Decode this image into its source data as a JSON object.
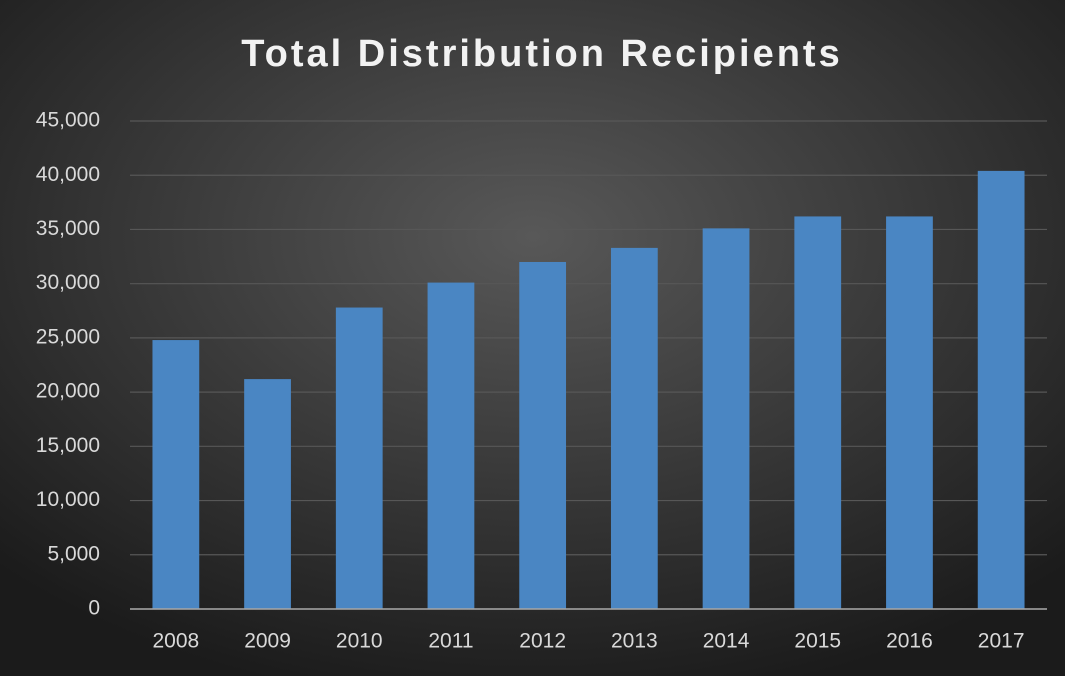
{
  "chart_data": {
    "type": "bar",
    "title": "Total Distribution Recipients",
    "categories": [
      "2008",
      "2009",
      "2010",
      "2011",
      "2012",
      "2013",
      "2014",
      "2015",
      "2016",
      "2017"
    ],
    "values": [
      24800,
      21200,
      27800,
      30100,
      32000,
      33300,
      35100,
      36200,
      36200,
      40400
    ],
    "color": "#4a86c3",
    "ylim": [
      0,
      45000
    ],
    "yticks": [
      0,
      {
        "value": 5000,
        "label": "5,000"
      },
      {
        "value": 10000,
        "label": "10,000"
      },
      {
        "value": 15000,
        "label": "15,000"
      },
      {
        "value": 20000,
        "label": "20,000"
      },
      {
        "value": 25000,
        "label": "25,000"
      },
      {
        "value": 30000,
        "label": "30,000"
      },
      {
        "value": 35000,
        "label": "35,000"
      },
      {
        "value": 40000,
        "label": "40,000"
      },
      {
        "value": 45000,
        "label": "45,000"
      }
    ],
    "grid": true
  }
}
